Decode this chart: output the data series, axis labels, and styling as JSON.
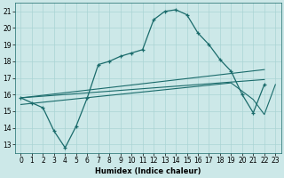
{
  "xlabel": "Humidex (Indice chaleur)",
  "bg_color": "#cce8e8",
  "grid_color": "#aad4d4",
  "line_color": "#1a6b6b",
  "x_ticks": [
    0,
    1,
    2,
    3,
    4,
    5,
    6,
    7,
    8,
    9,
    10,
    11,
    12,
    13,
    14,
    15,
    16,
    17,
    18,
    19,
    20,
    21,
    22,
    23
  ],
  "y_ticks": [
    13,
    14,
    15,
    16,
    17,
    18,
    19,
    20,
    21
  ],
  "ylim": [
    12.5,
    21.5
  ],
  "xlim": [
    -0.5,
    23.5
  ],
  "line1_x": [
    0,
    1,
    2,
    3,
    4,
    5,
    6,
    7,
    8,
    9,
    10,
    11,
    12,
    13,
    14,
    15,
    16,
    17,
    18,
    19,
    20,
    21,
    22
  ],
  "line1_y": [
    15.8,
    15.5,
    15.2,
    13.8,
    12.8,
    14.1,
    15.8,
    17.8,
    18.0,
    18.3,
    18.5,
    18.7,
    20.5,
    21.0,
    21.1,
    20.8,
    19.7,
    19.0,
    18.1,
    17.4,
    16.0,
    14.9,
    16.6
  ],
  "line2_x": [
    0,
    22
  ],
  "line2_y": [
    15.8,
    17.5
  ],
  "line3_x": [
    0,
    22
  ],
  "line3_y": [
    15.8,
    16.9
  ],
  "line4_x": [
    0,
    19,
    21,
    22,
    23
  ],
  "line4_y": [
    15.4,
    16.7,
    15.7,
    14.8,
    16.6
  ]
}
